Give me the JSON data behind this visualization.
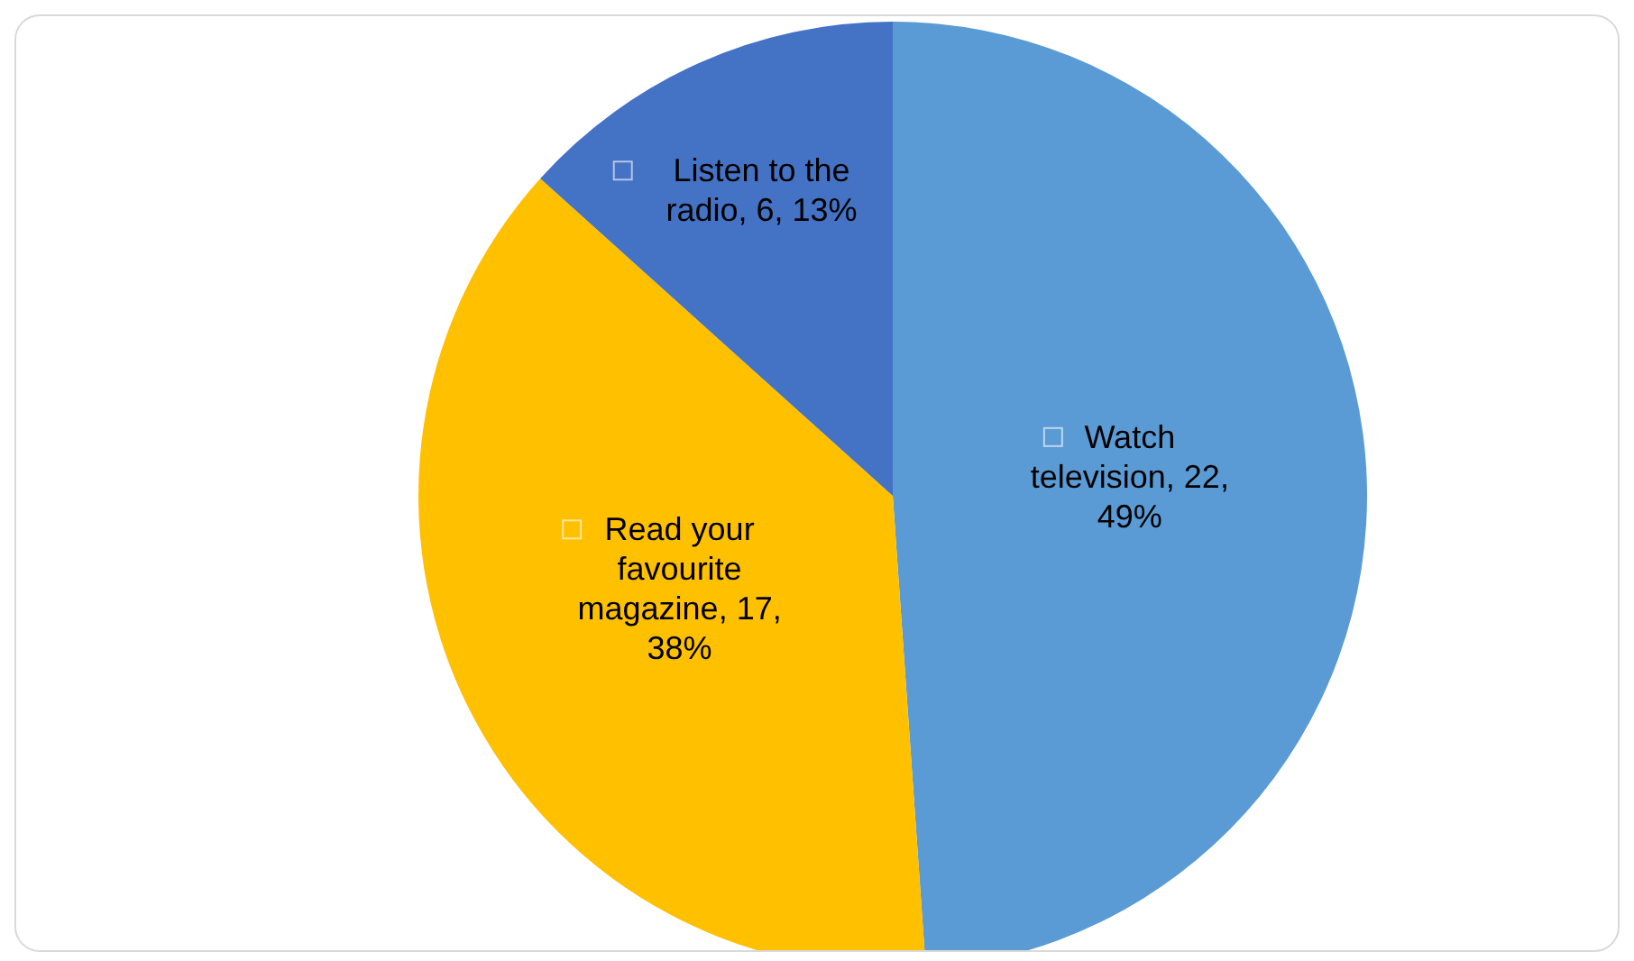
{
  "chart_data": {
    "type": "pie",
    "categories": [
      "Watch television",
      "Read your favourite magazine",
      "Listen to the radio"
    ],
    "values": [
      22,
      17,
      6
    ],
    "colors": [
      "#5b9bd5",
      "#ffc000",
      "#4472c4"
    ],
    "value_labels": [
      "22, 49%",
      "17, 38%",
      "6, 13%"
    ],
    "legend": "center"
  }
}
